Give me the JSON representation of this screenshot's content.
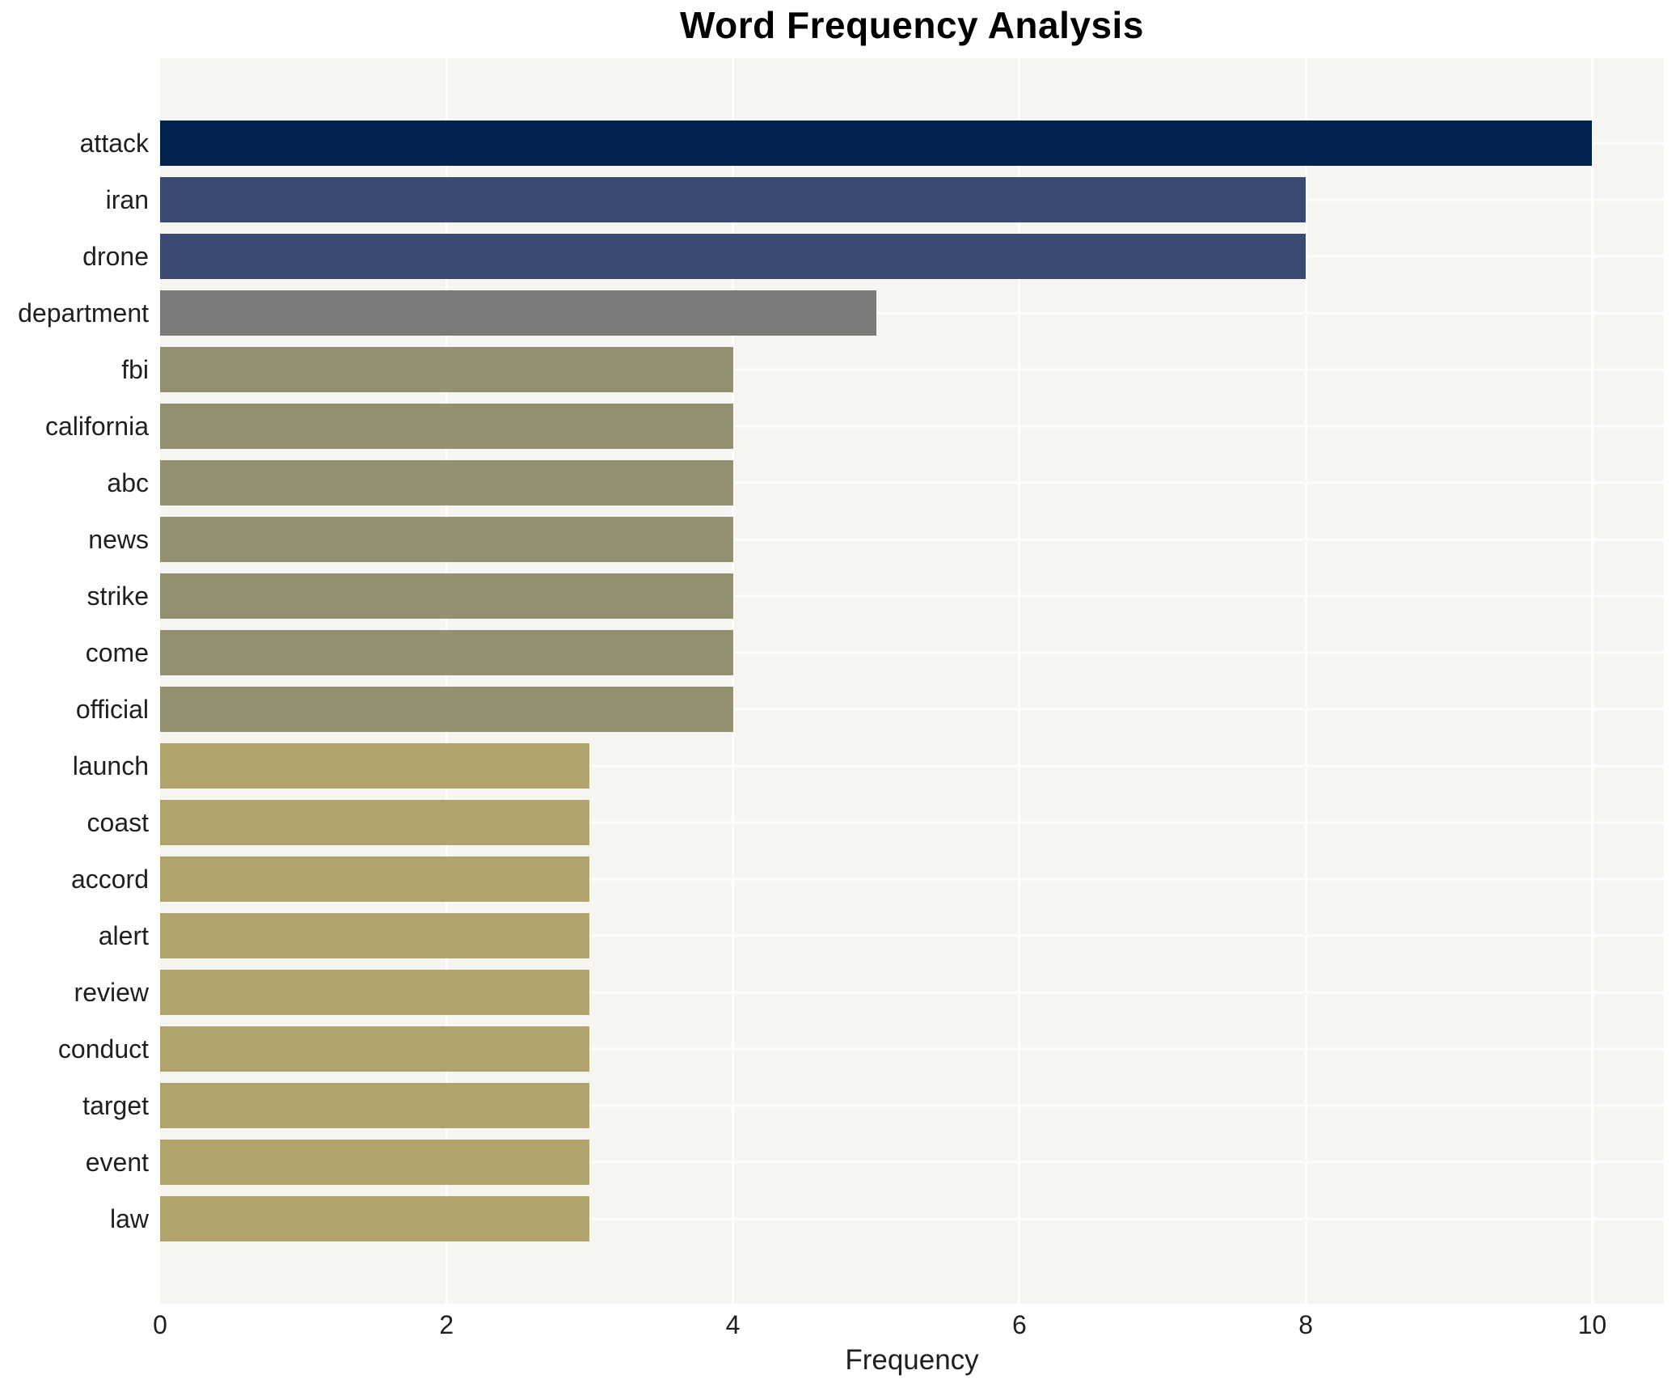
{
  "chart_data": {
    "type": "bar",
    "orientation": "horizontal",
    "title": "Word Frequency Analysis",
    "xlabel": "Frequency",
    "ylabel": "",
    "xlim": [
      0,
      10.5
    ],
    "xticks": [
      0,
      2,
      4,
      6,
      8,
      10
    ],
    "grid": true,
    "legend": "none",
    "plot_background": "#f6f5f2",
    "gridline_color": "#ffffff",
    "categories": [
      "attack",
      "iran",
      "drone",
      "department",
      "fbi",
      "california",
      "abc",
      "news",
      "strike",
      "come",
      "official",
      "launch",
      "coast",
      "accord",
      "alert",
      "review",
      "conduct",
      "target",
      "event",
      "law"
    ],
    "values": [
      10,
      8,
      8,
      5,
      4,
      4,
      4,
      4,
      4,
      4,
      4,
      3,
      3,
      3,
      3,
      3,
      3,
      3,
      3,
      3
    ],
    "bar_colors": [
      "#02234d",
      "#3a4a72",
      "#3a4a72",
      "#7a7a78",
      "#949072",
      "#949072",
      "#949072",
      "#949072",
      "#949072",
      "#949072",
      "#949072",
      "#b0a46c",
      "#b0a46c",
      "#b0a46c",
      "#b0a46c",
      "#b0a46c",
      "#b0a46c",
      "#b0a46c",
      "#b0a46c",
      "#b0a46c"
    ]
  }
}
